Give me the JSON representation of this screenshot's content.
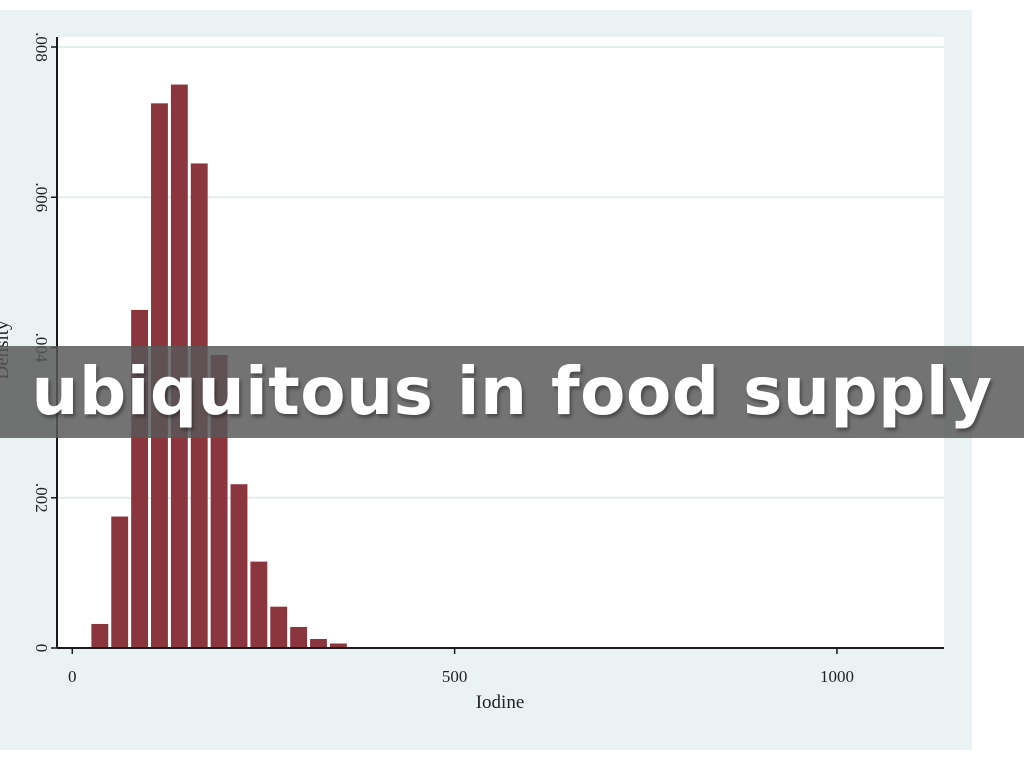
{
  "caption": "ubiquitous in food supply",
  "chart_data": {
    "type": "bar",
    "title": "",
    "xlabel": "Iodine",
    "ylabel": "Density",
    "xlim": [
      -20,
      1140
    ],
    "ylim": [
      0,
      0.008
    ],
    "x_ticks": [
      {
        "value": 0,
        "label": "0"
      },
      {
        "value": 500,
        "label": "500"
      },
      {
        "value": 1000,
        "label": "1000"
      }
    ],
    "y_ticks": [
      {
        "value": 0,
        "label": "0"
      },
      {
        "value": 0.002,
        "label": ".002"
      },
      {
        "value": 0.004,
        "label": ".004"
      },
      {
        "value": 0.006,
        "label": ".006"
      },
      {
        "value": 0.008,
        "label": ".008"
      }
    ],
    "grid": true,
    "bin_width": 26,
    "bins": [
      {
        "x": 36,
        "value": 0.00032
      },
      {
        "x": 62,
        "value": 0.00175
      },
      {
        "x": 88,
        "value": 0.0045
      },
      {
        "x": 114,
        "value": 0.00725
      },
      {
        "x": 140,
        "value": 0.0075
      },
      {
        "x": 166,
        "value": 0.00645
      },
      {
        "x": 192,
        "value": 0.0039
      },
      {
        "x": 218,
        "value": 0.00218
      },
      {
        "x": 244,
        "value": 0.00115
      },
      {
        "x": 270,
        "value": 0.00055
      },
      {
        "x": 296,
        "value": 0.00028
      },
      {
        "x": 322,
        "value": 0.00012
      },
      {
        "x": 348,
        "value": 6e-05
      }
    ],
    "colors": {
      "bar": "#8b353f",
      "frame_background": "#eaf2f3",
      "plot_background": "#ffffff",
      "grid": "#e3ecee",
      "axis": "#1a1a1a"
    }
  }
}
